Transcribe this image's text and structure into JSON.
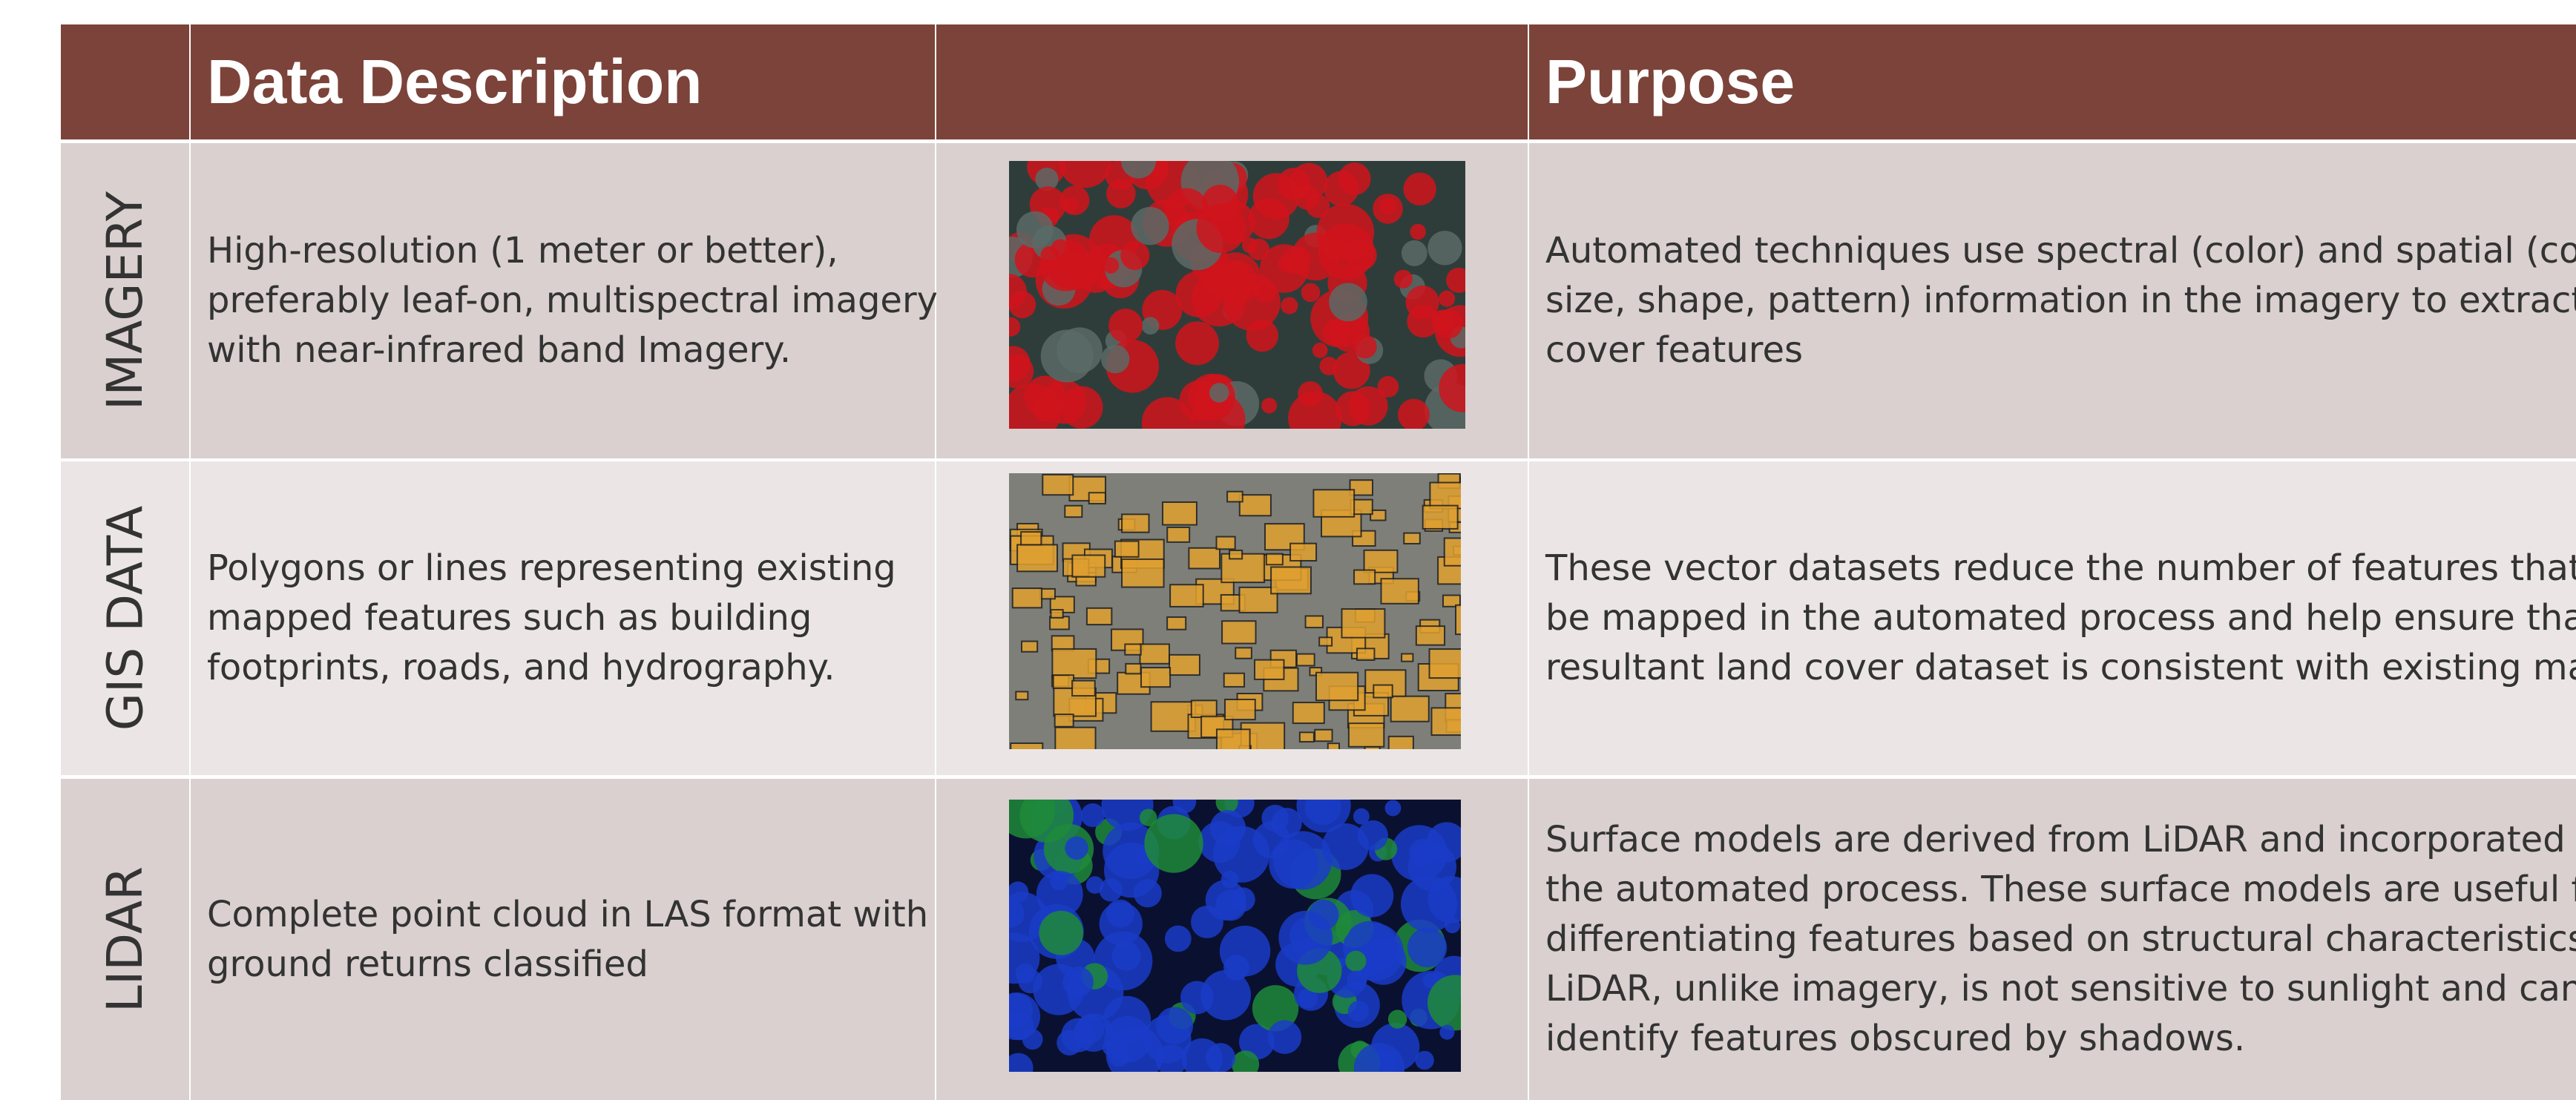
{
  "header": {
    "description": "Data Description",
    "purpose": "Purpose"
  },
  "rows": [
    {
      "label": "IMAGERY",
      "description": [
        "High-resolution (1 meter or better),",
        "preferably leaf-on, multispectral imagery",
        "with near-infrared band Imagery."
      ],
      "purpose": [
        "Automated techniques use spectral (color) and spatial (context:",
        "size, shape, pattern) information in the imagery to extract land",
        "cover features"
      ]
    },
    {
      "label": "GIS DATA",
      "description": [
        "Polygons or lines representing existing",
        "mapped features such as building",
        "footprints, roads, and hydrography."
      ],
      "purpose": [
        "These vector datasets reduce the number of features that must",
        "be mapped in the automated process and help ensure that the",
        "resultant land cover dataset is consistent with existing maps."
      ]
    },
    {
      "label": "LIDAR",
      "description": [
        "Complete point cloud in LAS format with",
        "ground returns classified"
      ],
      "purpose": [
        "Surface models are derived from LiDAR and incorporated into",
        "the automated process. These surface models are useful for",
        "differentiating features based on structural characteristics.",
        "LiDAR, unlike imagery, is not sensitive to sunlight and can",
        "identify features obscured by shadows."
      ]
    }
  ]
}
